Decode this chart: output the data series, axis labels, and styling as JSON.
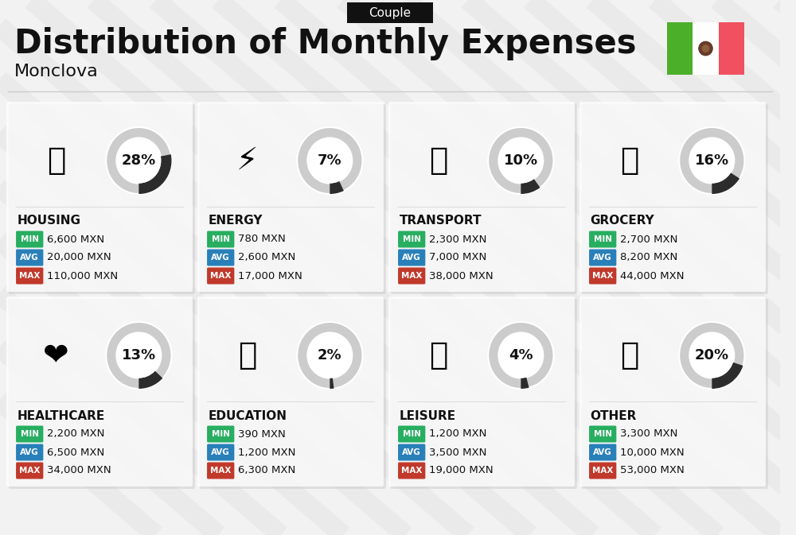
{
  "title": "Distribution of Monthly Expenses",
  "subtitle": "Couple",
  "city": "Monclova",
  "background_color": "#f2f2f2",
  "title_color": "#111111",
  "categories": [
    {
      "name": "HOUSING",
      "pct": 28,
      "min": "6,600 MXN",
      "avg": "20,000 MXN",
      "max": "110,000 MXN",
      "row": 0,
      "col": 0
    },
    {
      "name": "ENERGY",
      "pct": 7,
      "min": "780 MXN",
      "avg": "2,600 MXN",
      "max": "17,000 MXN",
      "row": 0,
      "col": 1
    },
    {
      "name": "TRANSPORT",
      "pct": 10,
      "min": "2,300 MXN",
      "avg": "7,000 MXN",
      "max": "38,000 MXN",
      "row": 0,
      "col": 2
    },
    {
      "name": "GROCERY",
      "pct": 16,
      "min": "2,700 MXN",
      "avg": "8,200 MXN",
      "max": "44,000 MXN",
      "row": 0,
      "col": 3
    },
    {
      "name": "HEALTHCARE",
      "pct": 13,
      "min": "2,200 MXN",
      "avg": "6,500 MXN",
      "max": "34,000 MXN",
      "row": 1,
      "col": 0
    },
    {
      "name": "EDUCATION",
      "pct": 2,
      "min": "390 MXN",
      "avg": "1,200 MXN",
      "max": "6,300 MXN",
      "row": 1,
      "col": 1
    },
    {
      "name": "LEISURE",
      "pct": 4,
      "min": "1,200 MXN",
      "avg": "3,500 MXN",
      "max": "19,000 MXN",
      "row": 1,
      "col": 2
    },
    {
      "name": "OTHER",
      "pct": 20,
      "min": "3,300 MXN",
      "avg": "10,000 MXN",
      "max": "53,000 MXN",
      "row": 1,
      "col": 3
    }
  ],
  "min_color": "#27ae60",
  "avg_color": "#2980b9",
  "max_color": "#c0392b",
  "donut_filled_color": "#2c2c2c",
  "donut_empty_color": "#cccccc",
  "category_name_color": "#111111",
  "value_text_color": "#111111",
  "mexico_green": "#4caf2a",
  "mexico_white": "#ffffff",
  "mexico_red": "#f05060",
  "stripe_color": "#e8e8e8",
  "couple_bg": "#111111",
  "couple_fg": "#ffffff"
}
